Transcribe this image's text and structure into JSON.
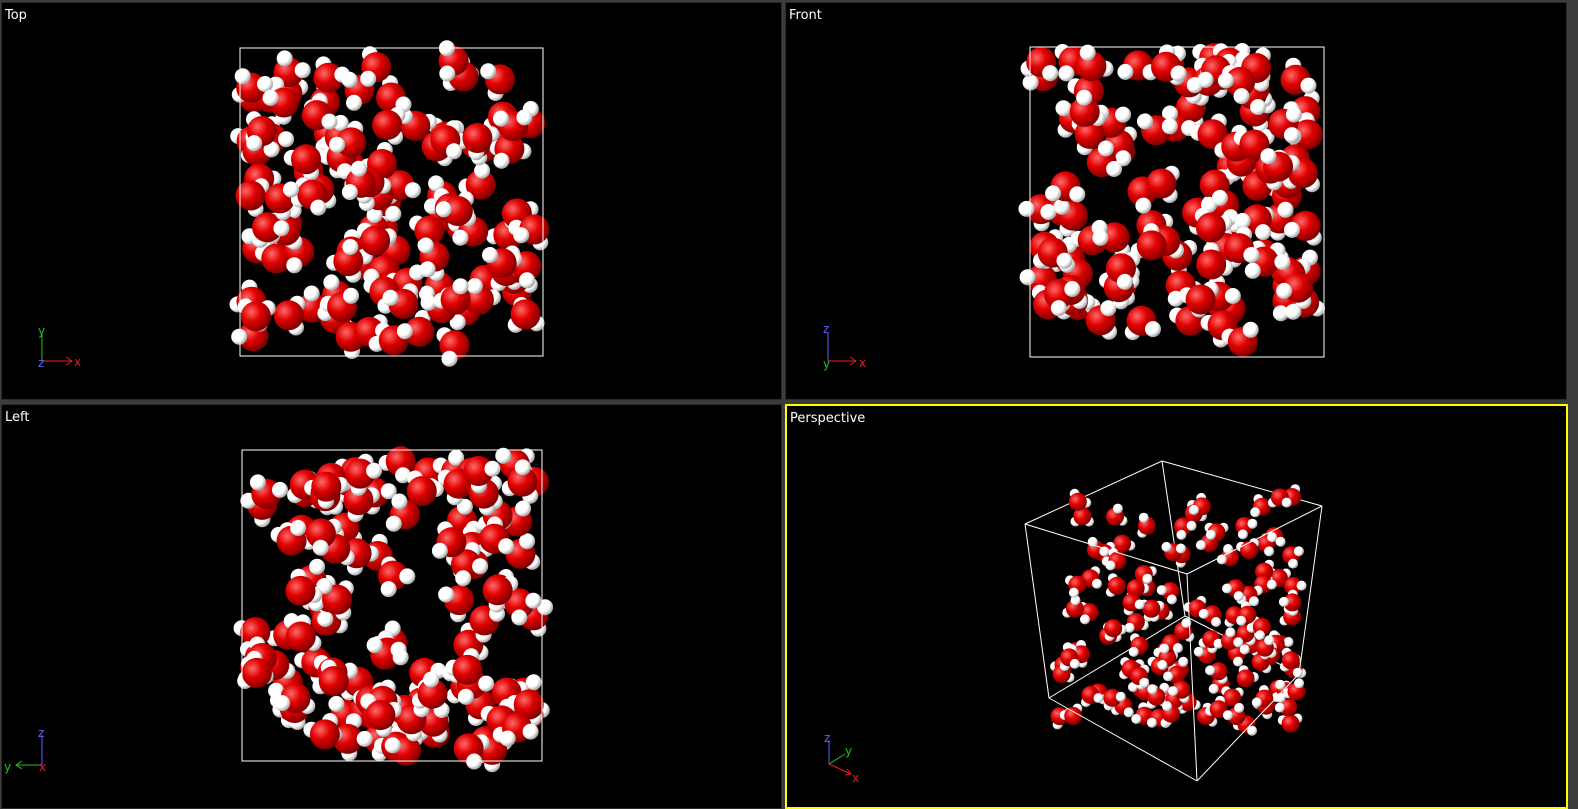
{
  "viewports": [
    {
      "id": "top",
      "title": "Top",
      "axes": {
        "right": "x",
        "up": "y",
        "out": "z"
      },
      "active": false
    },
    {
      "id": "front",
      "title": "Front",
      "axes": {
        "right": "x",
        "up": "z",
        "out": "y"
      },
      "active": false
    },
    {
      "id": "left",
      "title": "Left",
      "axes": {
        "left": "y",
        "up": "z",
        "out": "x"
      },
      "active": false
    },
    {
      "id": "perspective",
      "title": "Perspective",
      "axes": {
        "a": "z",
        "b": "y",
        "c": "x"
      },
      "active": true
    }
  ],
  "colors": {
    "viewport_bg": "#000000",
    "active_border": "#ffff00",
    "oxygen": "#e00000",
    "hydrogen": "#ffffff",
    "box_edges": "#ffffff",
    "axis_x": "#e02020",
    "axis_y": "#20c020",
    "axis_z": "#6060ff"
  },
  "scene": {
    "object": "water-molecules-box",
    "atom_types": [
      "oxygen",
      "hydrogen"
    ]
  }
}
